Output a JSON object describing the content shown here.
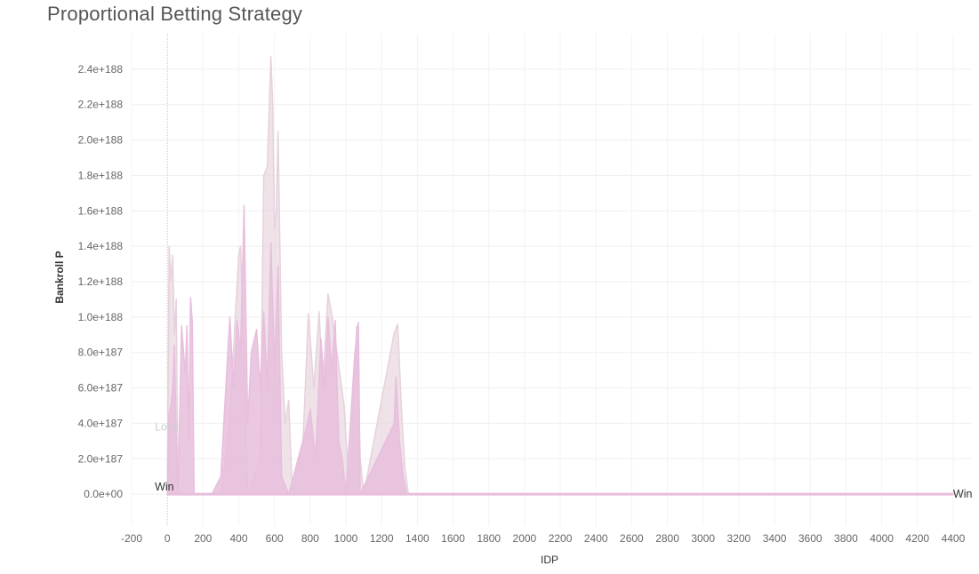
{
  "chart_data": {
    "type": "area",
    "title": "Proportional Betting Strategy",
    "xlabel": "IDP",
    "ylabel": "Bankroll P",
    "xlim": [
      -200,
      4500
    ],
    "ylim": [
      -1.8e+187,
      2.6e+188
    ],
    "x_ticks": [
      -200,
      0,
      200,
      400,
      600,
      800,
      1000,
      1200,
      1400,
      1600,
      1800,
      2000,
      2200,
      2400,
      2600,
      2800,
      3000,
      3200,
      3400,
      3600,
      3800,
      4000,
      4200,
      4400
    ],
    "y_ticks": [
      {
        "value": 0,
        "label": "0.0e+00"
      },
      {
        "value": 2e+187,
        "label": "2.0e+187"
      },
      {
        "value": 4e+187,
        "label": "4.0e+187"
      },
      {
        "value": 6e+187,
        "label": "6.0e+187"
      },
      {
        "value": 8e+187,
        "label": "8.0e+187"
      },
      {
        "value": 1e+188,
        "label": "1.0e+188"
      },
      {
        "value": 1.2e+188,
        "label": "1.2e+188"
      },
      {
        "value": 1.4e+188,
        "label": "1.4e+188"
      },
      {
        "value": 1.6e+188,
        "label": "1.6e+188"
      },
      {
        "value": 1.8e+188,
        "label": "1.8e+188"
      },
      {
        "value": 2e+188,
        "label": "2.0e+188"
      },
      {
        "value": 2.2e+188,
        "label": "2.2e+188"
      },
      {
        "value": 2.4e+188,
        "label": "2.4e+188"
      }
    ],
    "grid": true,
    "series": [
      {
        "color": "#e6d2dd",
        "opacity": 0.65,
        "points": [
          [
            0,
            0
          ],
          [
            10,
            1.4e+188
          ],
          [
            20,
            1.2e+188
          ],
          [
            30,
            1.35e+188
          ],
          [
            40,
            9e+187
          ],
          [
            50,
            1.1e+188
          ],
          [
            60,
            0
          ],
          [
            200,
            0
          ],
          [
            300,
            0
          ],
          [
            350,
            4e+187
          ],
          [
            380,
            1e+188
          ],
          [
            400,
            1.35e+188
          ],
          [
            410,
            1.4e+188
          ],
          [
            430,
            8e+187
          ],
          [
            450,
            0
          ],
          [
            520,
            2e+187
          ],
          [
            540,
            1.8e+188
          ],
          [
            560,
            1.85e+188
          ],
          [
            580,
            2.47e+188
          ],
          [
            590,
            2.2e+188
          ],
          [
            600,
            1.5e+188
          ],
          [
            610,
            1.6e+188
          ],
          [
            620,
            2.05e+188
          ],
          [
            640,
            8e+187
          ],
          [
            660,
            4e+187
          ],
          [
            680,
            5.3e+187
          ],
          [
            700,
            0
          ],
          [
            760,
            3e+187
          ],
          [
            790,
            1.02e+188
          ],
          [
            820,
            6e+187
          ],
          [
            850,
            1.03e+188
          ],
          [
            870,
            6e+187
          ],
          [
            900,
            1.13e+188
          ],
          [
            920,
            1.02e+188
          ],
          [
            950,
            8e+187
          ],
          [
            990,
            5e+187
          ],
          [
            1020,
            0
          ],
          [
            1060,
            9.5e+187
          ],
          [
            1080,
            2e+187
          ],
          [
            1100,
            0
          ],
          [
            1270,
            9.1e+187
          ],
          [
            1290,
            9.6e+187
          ],
          [
            1310,
            5e+187
          ],
          [
            1330,
            1.5e+187
          ],
          [
            1350,
            0
          ],
          [
            4400,
            0
          ]
        ]
      },
      {
        "color": "#e8bedc",
        "opacity": 0.85,
        "points": [
          [
            0,
            0
          ],
          [
            10,
            4.6e+187
          ],
          [
            20,
            5e+187
          ],
          [
            30,
            6e+187
          ],
          [
            40,
            8.4e+187
          ],
          [
            50,
            3e+187
          ],
          [
            60,
            0
          ],
          [
            80,
            9.5e+187
          ],
          [
            100,
            6.8e+187
          ],
          [
            110,
            9.5e+187
          ],
          [
            120,
            3e+187
          ],
          [
            130,
            1.11e+188
          ],
          [
            140,
            9.7e+187
          ],
          [
            150,
            0
          ],
          [
            250,
            0
          ],
          [
            300,
            1e+187
          ],
          [
            330,
            6.5e+187
          ],
          [
            350,
            1e+188
          ],
          [
            370,
            6e+187
          ],
          [
            390,
            9.8e+187
          ],
          [
            410,
            8e+187
          ],
          [
            430,
            1.63e+188
          ],
          [
            450,
            4e+187
          ],
          [
            470,
            8e+187
          ],
          [
            500,
            9.3e+187
          ],
          [
            520,
            6e+187
          ],
          [
            540,
            1.03e+188
          ],
          [
            560,
            6e+187
          ],
          [
            580,
            1.42e+188
          ],
          [
            600,
            7e+187
          ],
          [
            620,
            1.29e+188
          ],
          [
            640,
            1e+187
          ],
          [
            680,
            0
          ],
          [
            780,
            3.8e+187
          ],
          [
            800,
            4.8e+187
          ],
          [
            830,
            2e+187
          ],
          [
            860,
            8.8e+187
          ],
          [
            880,
            6e+187
          ],
          [
            900,
            1e+188
          ],
          [
            920,
            7e+187
          ],
          [
            940,
            9.8e+187
          ],
          [
            960,
            3e+187
          ],
          [
            980,
            2e+187
          ],
          [
            1000,
            0
          ],
          [
            1050,
            8e+187
          ],
          [
            1070,
            9.7e+187
          ],
          [
            1080,
            0
          ],
          [
            1270,
            4e+187
          ],
          [
            1280,
            6.6e+187
          ],
          [
            1300,
            3e+187
          ],
          [
            1320,
            1e+187
          ],
          [
            1340,
            0
          ],
          [
            4400,
            0
          ]
        ]
      }
    ],
    "annotations": [
      {
        "text": "Lose",
        "x": -70,
        "y": 3.8e+187,
        "color": "#cfcfcf"
      },
      {
        "text": "Win",
        "x": -70,
        "y": 4e+186,
        "color": "#333333"
      },
      {
        "text": "Win",
        "x": 4400,
        "y": 0,
        "color": "#333333"
      }
    ]
  }
}
